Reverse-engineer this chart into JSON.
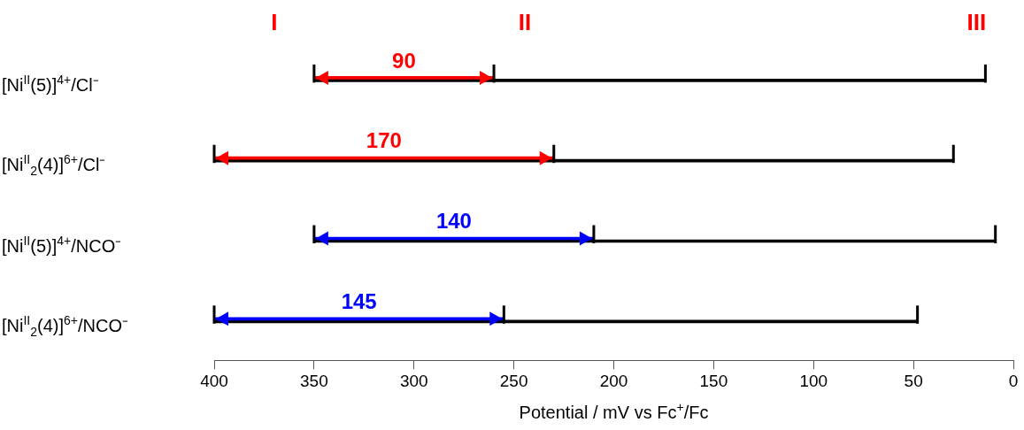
{
  "chart_data": {
    "type": "bar",
    "orientation": "horizontal",
    "xlabel": "Potential / mV vs Fc$^{+}$/Fc",
    "categories": [
      "[Ni$^{II}$(5)]$^{4+}$/Cl⁻",
      "[Ni$^{II}$$_{2}$(4)]$^{6+}$/Cl⁻",
      "[Ni$^{II}$(5)]$^{4+}$/NCO⁻",
      "[Ni$^{II}$$_{2}$(4)]$^{6+}$/NCO⁻"
    ],
    "series": [
      {
        "colors": [
          "#ff0000",
          "#ff0000",
          "#0000ff",
          "#0000ff"
        ],
        "base": [
          350,
          400,
          350,
          400
        ],
        "values": [
          -90,
          -170,
          -140,
          -145
        ],
        "value_labels": [
          "90",
          "170",
          "140",
          "145"
        ]
      },
      {
        "color": "#000000",
        "base": [
          350,
          400,
          350,
          400
        ],
        "values": [
          -336,
          -370,
          -341,
          -352
        ]
      }
    ],
    "xlim": [
      400,
      0
    ],
    "xticks": [
      400,
      350,
      300,
      250,
      200,
      150,
      100,
      50,
      0
    ],
    "annotations": [
      "I",
      "II",
      "III"
    ],
    "grid": false,
    "legend": false
  }
}
